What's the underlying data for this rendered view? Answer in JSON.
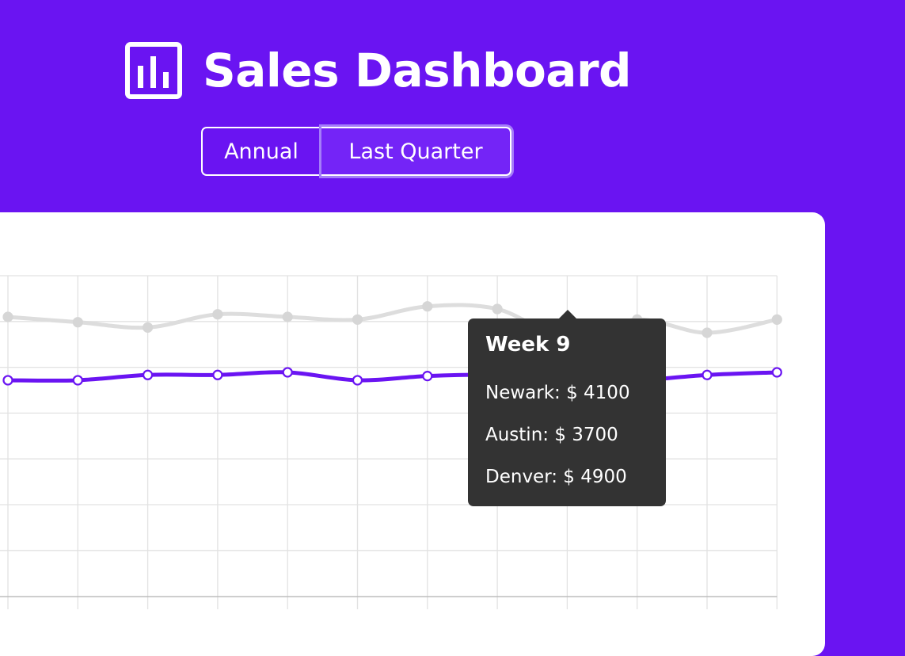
{
  "header": {
    "title": "Sales Dashboard",
    "icon": "bar-chart-icon"
  },
  "tabs": [
    {
      "label": "Annual",
      "active": false
    },
    {
      "label": "Last Quarter",
      "active": true
    }
  ],
  "colors": {
    "background": "#6a14f2",
    "Newark": "#6a14f2",
    "Austin": "#cfcfcf",
    "Denver": "#dddddd",
    "tooltip": "#333333"
  },
  "tooltip": {
    "title": "Week 9",
    "rows": [
      "Newark: $ 4100",
      "Austin: $ 3700",
      "Denver: $ 4900"
    ]
  },
  "chart_data": {
    "type": "line",
    "x": [
      1,
      2,
      3,
      4,
      5,
      6,
      7,
      8,
      9,
      10,
      11,
      12
    ],
    "ylim": [
      0,
      6000
    ],
    "grid": true,
    "highlight_x": 9,
    "series": [
      {
        "name": "Newark",
        "values": [
          4100,
          4100,
          4200,
          4200,
          4250,
          4100,
          4180,
          4200,
          4100,
          4100,
          4200,
          4250
        ]
      },
      {
        "name": "Denver",
        "values": [
          5300,
          5200,
          5100,
          5350,
          5300,
          5250,
          5500,
          5450,
          4900,
          5250,
          5000,
          5250
        ]
      }
    ]
  }
}
